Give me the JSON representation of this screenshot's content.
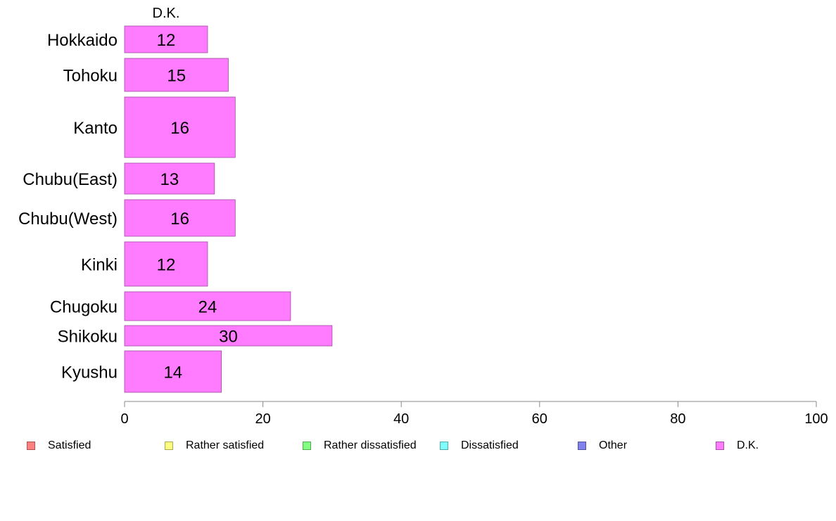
{
  "chart_data": {
    "type": "bar",
    "orientation": "horizontal",
    "column_header": "D.K.",
    "categories": [
      "Hokkaido",
      "Tohoku",
      "Kanto",
      "Chubu(East)",
      "Chubu(West)",
      "Kinki",
      "Chugoku",
      "Shikoku",
      "Kyushu"
    ],
    "series": [
      {
        "name": "D.K.",
        "color": "#ff7bff",
        "values": [
          12,
          15,
          16,
          13,
          16,
          12,
          24,
          30,
          14
        ]
      }
    ],
    "xlim": [
      0,
      100
    ],
    "xticks": [
      "0",
      "20",
      "40",
      "60",
      "80",
      "100"
    ],
    "grid": false,
    "legend_position": "bottom",
    "legend": [
      {
        "label": "Satisfied",
        "color": "#ff8080"
      },
      {
        "label": "Rather satisfied",
        "color": "#ffff80"
      },
      {
        "label": "Rather dissatisfied",
        "color": "#80ff80"
      },
      {
        "label": "Dissatisfied",
        "color": "#80ffff"
      },
      {
        "label": "Other",
        "color": "#8080ee"
      },
      {
        "label": "D.K.",
        "color": "#ff7bff"
      }
    ]
  }
}
